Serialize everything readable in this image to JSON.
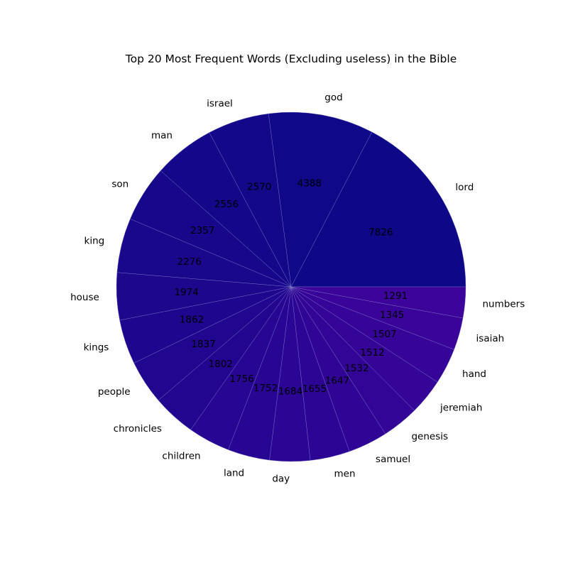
{
  "chart_data": {
    "type": "pie",
    "title": "Top 20 Most Frequent Words (Excluding useless) in the Bible",
    "categories": [
      "lord",
      "god",
      "israel",
      "man",
      "son",
      "king",
      "house",
      "kings",
      "people",
      "chronicles",
      "children",
      "land",
      "day",
      "men",
      "samuel",
      "genesis",
      "jeremiah",
      "hand",
      "isaiah",
      "numbers"
    ],
    "values": [
      7826,
      4388,
      2570,
      2556,
      2357,
      2276,
      1974,
      1862,
      1837,
      1802,
      1756,
      1752,
      1684,
      1655,
      1647,
      1532,
      1512,
      1507,
      1345,
      1291
    ],
    "start_angle": 0,
    "direction": "counterclockwise",
    "color_start": "#0d0887",
    "color_end": "#3c049b",
    "edge_color": "#7a78c4",
    "legend": "none"
  }
}
